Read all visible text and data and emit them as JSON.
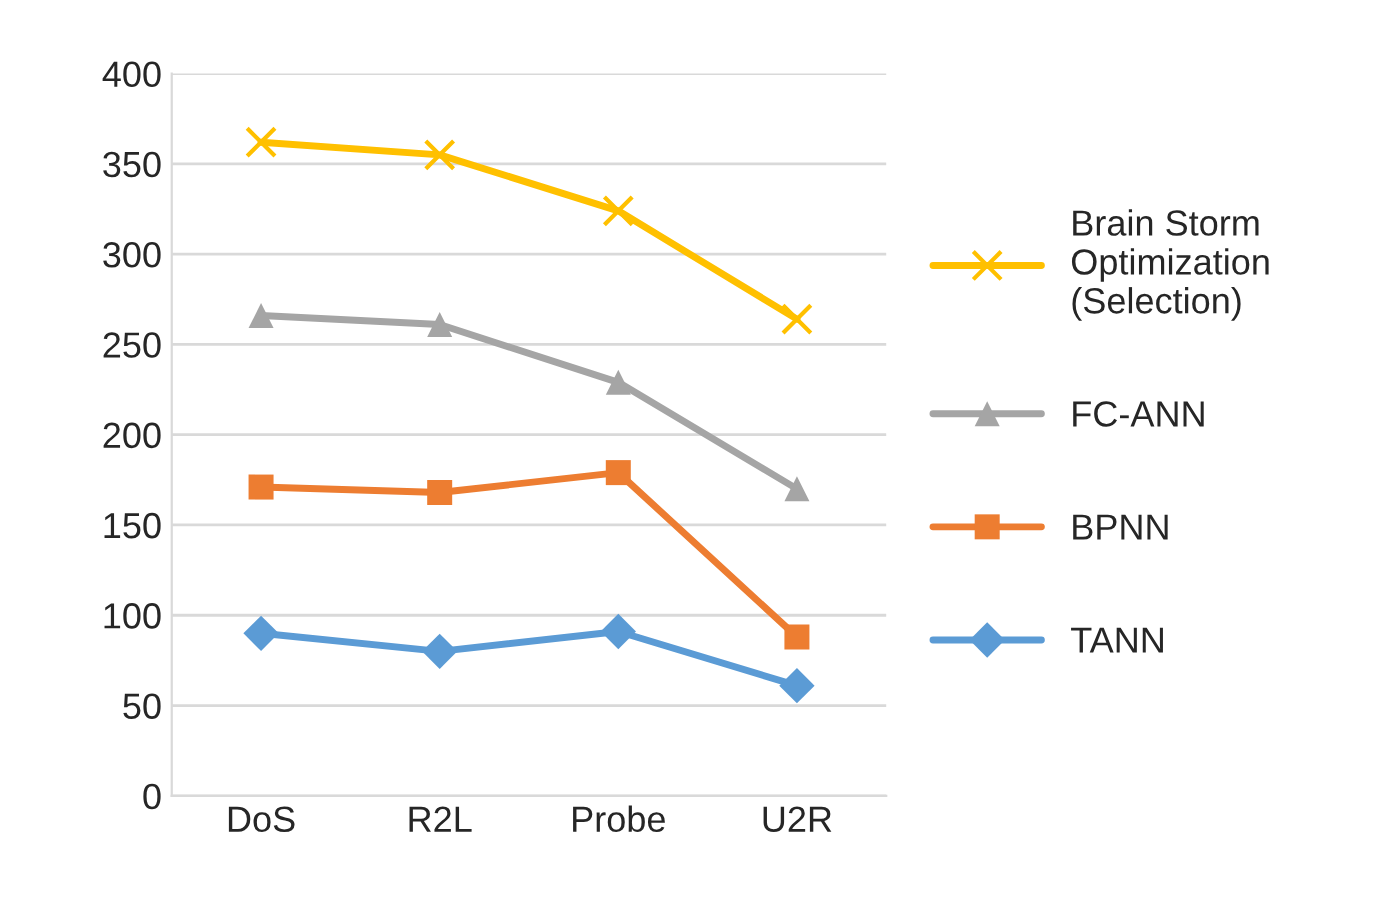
{
  "chart_data": {
    "type": "line",
    "categories": [
      "DoS",
      "R2L",
      "Probe",
      "U2R"
    ],
    "series": [
      {
        "name": "Brain Storm\nOptimization\n(Selection)",
        "color": "#ffc000",
        "marker": "cross",
        "values": [
          362,
          355,
          324,
          264
        ]
      },
      {
        "name": "FC-ANN",
        "color": "#a5a5a5",
        "marker": "triangle",
        "values": [
          266,
          261,
          229,
          170
        ]
      },
      {
        "name": "BPNN",
        "color": "#ed7d31",
        "marker": "square",
        "values": [
          171,
          168,
          179,
          88
        ]
      },
      {
        "name": "TANN",
        "color": "#5b9bd5",
        "marker": "diamond",
        "values": [
          90,
          80,
          91,
          61
        ]
      }
    ],
    "ylim": [
      0,
      400
    ],
    "yticks": [
      0,
      50,
      100,
      150,
      200,
      250,
      300,
      350,
      400
    ],
    "grid": "y",
    "legend": "right",
    "line_style": "solid"
  }
}
